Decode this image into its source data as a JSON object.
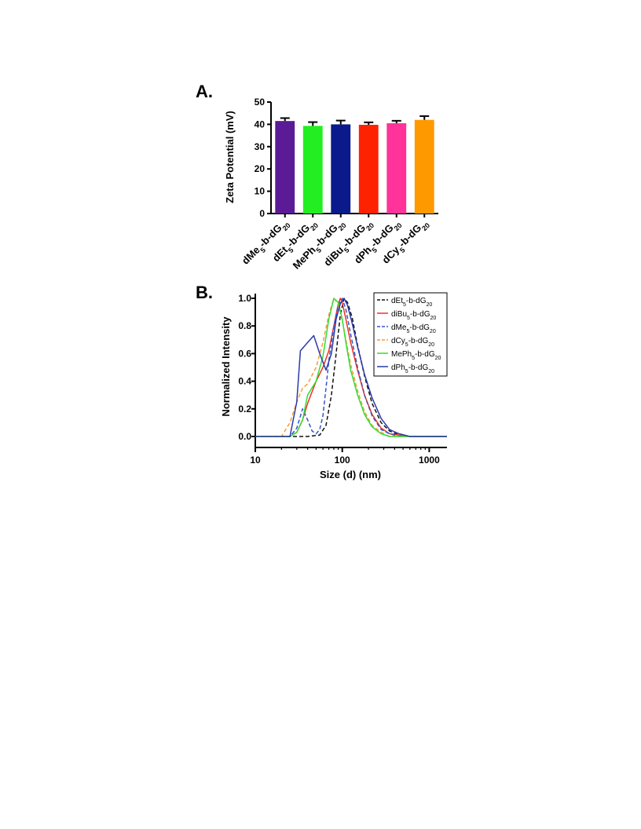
{
  "panels": {
    "a": {
      "label": "A."
    },
    "b": {
      "label": "B."
    }
  },
  "chart_data": [
    {
      "type": "bar",
      "ylabel": "Zeta Potential (mV)",
      "ylim": [
        0,
        50
      ],
      "yticks": [
        "0",
        "10",
        "20",
        "30",
        "40",
        "50"
      ],
      "categories": [
        {
          "main": "dMe",
          "sub1": "5",
          "mid": "-b-dG",
          "sub2": "20"
        },
        {
          "main": "dEt",
          "sub1": "5",
          "mid": "-b-dG",
          "sub2": "20"
        },
        {
          "main": "MePh",
          "sub1": "5",
          "mid": "-b-dG",
          "sub2": "20"
        },
        {
          "main": "diBu",
          "sub1": "5",
          "mid": "-b-dG",
          "sub2": "20"
        },
        {
          "main": "dPh",
          "sub1": "5",
          "mid": "-b-dG",
          "sub2": "20"
        },
        {
          "main": "dCy",
          "sub1": "5",
          "mid": "-b-dG",
          "sub2": "20"
        }
      ],
      "values": [
        41.5,
        39.3,
        40.0,
        39.8,
        40.5,
        42.0
      ],
      "errors": [
        1.3,
        1.7,
        1.7,
        1.1,
        1.1,
        1.7
      ],
      "colors": [
        "#5b1a96",
        "#22ee22",
        "#0a1a8c",
        "#ff2200",
        "#ff3399",
        "#ff9900"
      ],
      "grid": false
    },
    {
      "type": "line",
      "xlabel": "Size (d) (nm)",
      "ylabel": "Normalized Intensity",
      "xscale": "log",
      "xlim": [
        10,
        1600
      ],
      "ylim": [
        0,
        1.0
      ],
      "xticks": [
        "10",
        "100",
        "1000"
      ],
      "yticks": [
        "0.0",
        "0.2",
        "0.4",
        "0.6",
        "0.8",
        "1.0"
      ],
      "legend_position": "top-right",
      "series": [
        {
          "name": {
            "main": "dEt",
            "sub1": "5",
            "mid": "-b-dG",
            "sub2": "20"
          },
          "color": "#111111",
          "dash": true,
          "x": [
            10,
            40,
            55,
            65,
            75,
            85,
            95,
            105,
            115,
            130,
            150,
            180,
            220,
            280,
            350,
            450,
            600,
            800,
            1600
          ],
          "y": [
            0,
            0,
            0.01,
            0.08,
            0.3,
            0.6,
            0.88,
            1.0,
            0.97,
            0.86,
            0.66,
            0.44,
            0.24,
            0.1,
            0.04,
            0.01,
            0,
            0,
            0
          ]
        },
        {
          "name": {
            "main": "diBu",
            "sub1": "5",
            "mid": "-b-dG",
            "sub2": "20"
          },
          "color": "#ee3322",
          "dash": false,
          "x": [
            10,
            25,
            30,
            35,
            40,
            50,
            60,
            70,
            80,
            90,
            95,
            100,
            110,
            125,
            150,
            180,
            220,
            280,
            350,
            450,
            600,
            1600
          ],
          "y": [
            0,
            0,
            0.03,
            0.12,
            0.24,
            0.4,
            0.5,
            0.62,
            0.8,
            0.96,
            1.0,
            0.97,
            0.85,
            0.68,
            0.48,
            0.3,
            0.16,
            0.06,
            0.02,
            0.01,
            0,
            0
          ]
        },
        {
          "name": {
            "main": "dMe",
            "sub1": "5",
            "mid": "-b-dG",
            "sub2": "20"
          },
          "color": "#3355cc",
          "dash": true,
          "x": [
            10,
            25,
            30,
            35,
            40,
            45,
            50,
            55,
            60,
            65,
            70,
            80,
            90,
            100,
            110,
            125,
            150,
            180,
            220,
            280,
            350,
            450,
            1600
          ],
          "y": [
            0,
            0,
            0.06,
            0.2,
            0.12,
            0.04,
            0.02,
            0.05,
            0.15,
            0.35,
            0.55,
            0.8,
            0.95,
            1.0,
            0.92,
            0.74,
            0.5,
            0.3,
            0.15,
            0.05,
            0.02,
            0,
            0
          ]
        },
        {
          "name": {
            "main": "dCy",
            "sub1": "5",
            "mid": "-b-dG",
            "sub2": "20"
          },
          "color": "#ff9933",
          "dash": true,
          "x": [
            10,
            20,
            25,
            30,
            35,
            40,
            50,
            60,
            70,
            80,
            90,
            100,
            110,
            125,
            150,
            180,
            220,
            280,
            350,
            1600
          ],
          "y": [
            0,
            0,
            0.1,
            0.25,
            0.35,
            0.38,
            0.5,
            0.68,
            0.88,
            1.0,
            0.96,
            0.84,
            0.7,
            0.52,
            0.33,
            0.18,
            0.08,
            0.03,
            0,
            0
          ]
        },
        {
          "name": {
            "main": "MePh",
            "sub1": "5",
            "mid": "-b-dG",
            "sub2": "20"
          },
          "color": "#33dd33",
          "dash": false,
          "x": [
            10,
            25,
            30,
            35,
            40,
            50,
            60,
            70,
            80,
            90,
            100,
            110,
            125,
            150,
            180,
            220,
            280,
            350,
            1600
          ],
          "y": [
            0,
            0,
            0.03,
            0.12,
            0.3,
            0.4,
            0.58,
            0.85,
            1.0,
            0.97,
            0.85,
            0.68,
            0.48,
            0.3,
            0.16,
            0.07,
            0.02,
            0,
            0
          ]
        },
        {
          "name": {
            "main": "dPh",
            "sub1": "5",
            "mid": "-b-dG",
            "sub2": "20"
          },
          "color": "#2b3aa8",
          "dash": false,
          "x": [
            10,
            25,
            30,
            33,
            40,
            47,
            55,
            65,
            75,
            85,
            95,
            105,
            115,
            130,
            150,
            180,
            220,
            280,
            350,
            450,
            600,
            1600
          ],
          "y": [
            0,
            0,
            0.25,
            0.62,
            0.68,
            0.73,
            0.6,
            0.48,
            0.6,
            0.85,
            0.96,
            1.0,
            0.95,
            0.82,
            0.65,
            0.45,
            0.28,
            0.13,
            0.05,
            0.02,
            0,
            0
          ]
        }
      ]
    }
  ]
}
